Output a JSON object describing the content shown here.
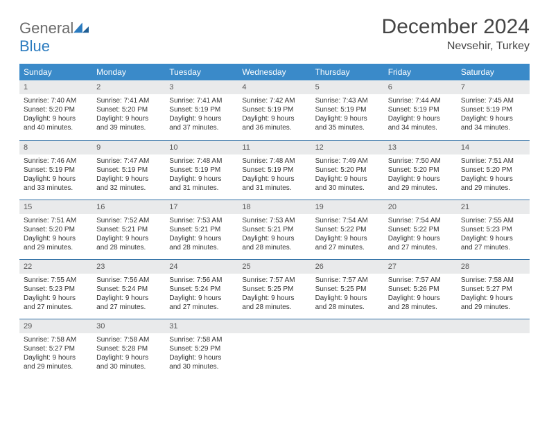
{
  "logo": {
    "general": "General",
    "blue": "Blue"
  },
  "title": "December 2024",
  "location": "Nevsehir, Turkey",
  "colors": {
    "header_bg": "#3a8ac9",
    "header_text": "#ffffff",
    "daynum_bg": "#e9eaeb",
    "row_border": "#2f6fa6",
    "title_color": "#454545",
    "body_text": "#333333",
    "logo_gray": "#6b6b6b",
    "logo_blue": "#2b7bbf",
    "background": "#ffffff"
  },
  "weekdays": [
    "Sunday",
    "Monday",
    "Tuesday",
    "Wednesday",
    "Thursday",
    "Friday",
    "Saturday"
  ],
  "days": [
    {
      "n": 1,
      "sr": "7:40 AM",
      "ss": "5:20 PM",
      "dl": "9 hours and 40 minutes."
    },
    {
      "n": 2,
      "sr": "7:41 AM",
      "ss": "5:20 PM",
      "dl": "9 hours and 39 minutes."
    },
    {
      "n": 3,
      "sr": "7:41 AM",
      "ss": "5:19 PM",
      "dl": "9 hours and 37 minutes."
    },
    {
      "n": 4,
      "sr": "7:42 AM",
      "ss": "5:19 PM",
      "dl": "9 hours and 36 minutes."
    },
    {
      "n": 5,
      "sr": "7:43 AM",
      "ss": "5:19 PM",
      "dl": "9 hours and 35 minutes."
    },
    {
      "n": 6,
      "sr": "7:44 AM",
      "ss": "5:19 PM",
      "dl": "9 hours and 34 minutes."
    },
    {
      "n": 7,
      "sr": "7:45 AM",
      "ss": "5:19 PM",
      "dl": "9 hours and 34 minutes."
    },
    {
      "n": 8,
      "sr": "7:46 AM",
      "ss": "5:19 PM",
      "dl": "9 hours and 33 minutes."
    },
    {
      "n": 9,
      "sr": "7:47 AM",
      "ss": "5:19 PM",
      "dl": "9 hours and 32 minutes."
    },
    {
      "n": 10,
      "sr": "7:48 AM",
      "ss": "5:19 PM",
      "dl": "9 hours and 31 minutes."
    },
    {
      "n": 11,
      "sr": "7:48 AM",
      "ss": "5:19 PM",
      "dl": "9 hours and 31 minutes."
    },
    {
      "n": 12,
      "sr": "7:49 AM",
      "ss": "5:20 PM",
      "dl": "9 hours and 30 minutes."
    },
    {
      "n": 13,
      "sr": "7:50 AM",
      "ss": "5:20 PM",
      "dl": "9 hours and 29 minutes."
    },
    {
      "n": 14,
      "sr": "7:51 AM",
      "ss": "5:20 PM",
      "dl": "9 hours and 29 minutes."
    },
    {
      "n": 15,
      "sr": "7:51 AM",
      "ss": "5:20 PM",
      "dl": "9 hours and 29 minutes."
    },
    {
      "n": 16,
      "sr": "7:52 AM",
      "ss": "5:21 PM",
      "dl": "9 hours and 28 minutes."
    },
    {
      "n": 17,
      "sr": "7:53 AM",
      "ss": "5:21 PM",
      "dl": "9 hours and 28 minutes."
    },
    {
      "n": 18,
      "sr": "7:53 AM",
      "ss": "5:21 PM",
      "dl": "9 hours and 28 minutes."
    },
    {
      "n": 19,
      "sr": "7:54 AM",
      "ss": "5:22 PM",
      "dl": "9 hours and 27 minutes."
    },
    {
      "n": 20,
      "sr": "7:54 AM",
      "ss": "5:22 PM",
      "dl": "9 hours and 27 minutes."
    },
    {
      "n": 21,
      "sr": "7:55 AM",
      "ss": "5:23 PM",
      "dl": "9 hours and 27 minutes."
    },
    {
      "n": 22,
      "sr": "7:55 AM",
      "ss": "5:23 PM",
      "dl": "9 hours and 27 minutes."
    },
    {
      "n": 23,
      "sr": "7:56 AM",
      "ss": "5:24 PM",
      "dl": "9 hours and 27 minutes."
    },
    {
      "n": 24,
      "sr": "7:56 AM",
      "ss": "5:24 PM",
      "dl": "9 hours and 27 minutes."
    },
    {
      "n": 25,
      "sr": "7:57 AM",
      "ss": "5:25 PM",
      "dl": "9 hours and 28 minutes."
    },
    {
      "n": 26,
      "sr": "7:57 AM",
      "ss": "5:25 PM",
      "dl": "9 hours and 28 minutes."
    },
    {
      "n": 27,
      "sr": "7:57 AM",
      "ss": "5:26 PM",
      "dl": "9 hours and 28 minutes."
    },
    {
      "n": 28,
      "sr": "7:58 AM",
      "ss": "5:27 PM",
      "dl": "9 hours and 29 minutes."
    },
    {
      "n": 29,
      "sr": "7:58 AM",
      "ss": "5:27 PM",
      "dl": "9 hours and 29 minutes."
    },
    {
      "n": 30,
      "sr": "7:58 AM",
      "ss": "5:28 PM",
      "dl": "9 hours and 30 minutes."
    },
    {
      "n": 31,
      "sr": "7:58 AM",
      "ss": "5:29 PM",
      "dl": "9 hours and 30 minutes."
    }
  ],
  "labels": {
    "sunrise": "Sunrise:",
    "sunset": "Sunset:",
    "daylight": "Daylight:"
  },
  "layout": {
    "start_weekday": 0,
    "columns": 7
  }
}
